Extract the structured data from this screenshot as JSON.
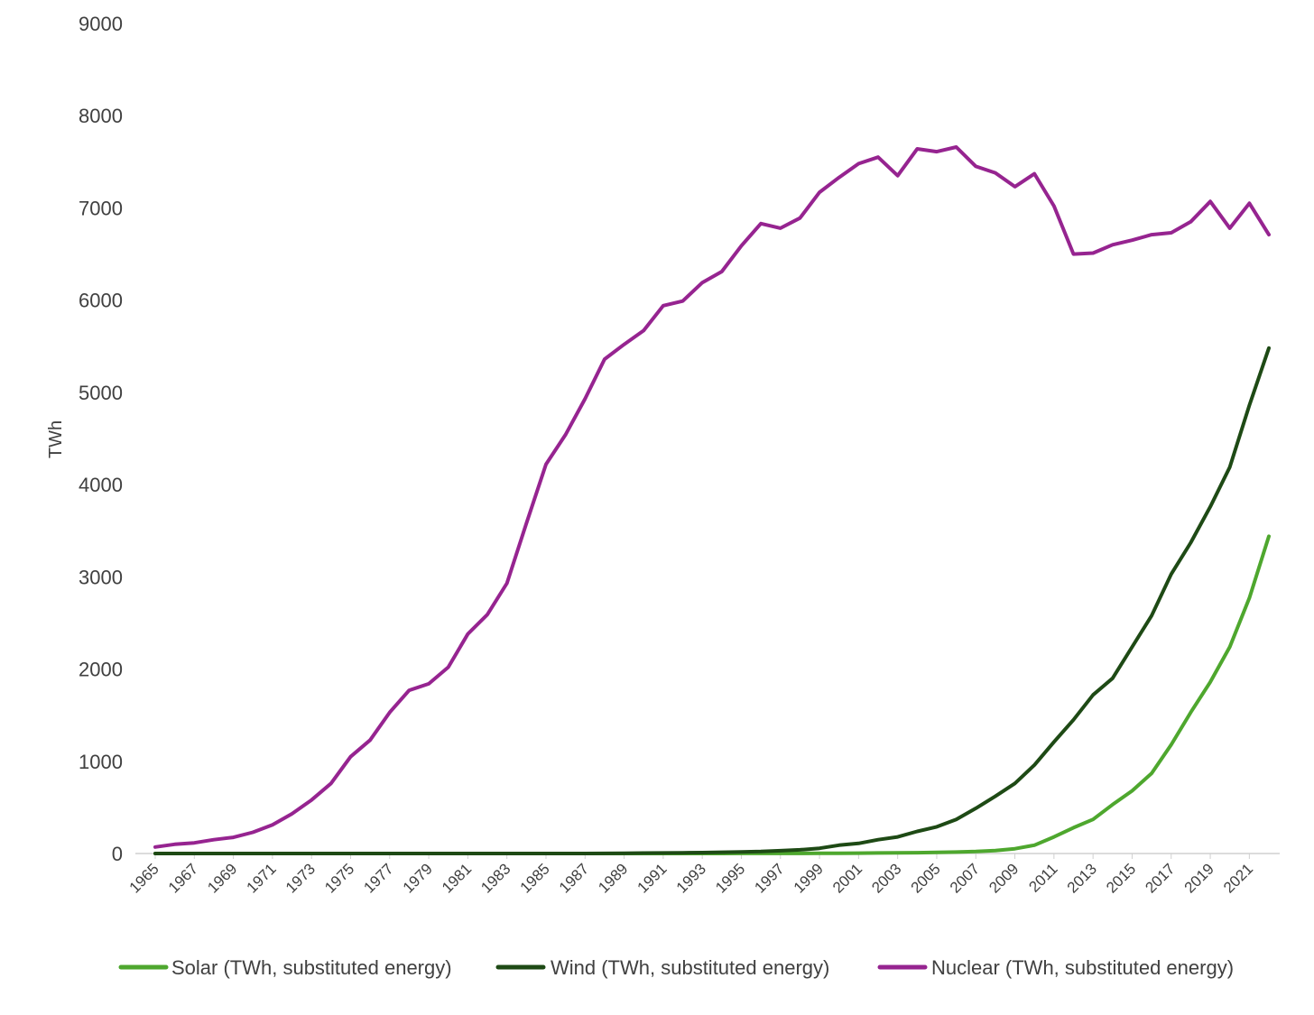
{
  "chart_data": {
    "type": "line",
    "title": "",
    "xlabel": "",
    "ylabel": "TWh",
    "ylim": [
      0,
      9000
    ],
    "yticks": [
      0,
      1000,
      2000,
      3000,
      4000,
      5000,
      6000,
      7000,
      8000,
      9000
    ],
    "x": [
      1965,
      1966,
      1967,
      1968,
      1969,
      1970,
      1971,
      1972,
      1973,
      1974,
      1975,
      1976,
      1977,
      1978,
      1979,
      1980,
      1981,
      1982,
      1983,
      1984,
      1985,
      1986,
      1987,
      1988,
      1989,
      1990,
      1991,
      1992,
      1993,
      1994,
      1995,
      1996,
      1997,
      1998,
      1999,
      2000,
      2001,
      2002,
      2003,
      2004,
      2005,
      2006,
      2007,
      2008,
      2009,
      2010,
      2011,
      2012,
      2013,
      2014,
      2015,
      2016,
      2017,
      2018,
      2019,
      2020,
      2021,
      2022
    ],
    "xtick_labels": [
      "1965",
      "1967",
      "1969",
      "1971",
      "1973",
      "1975",
      "1977",
      "1979",
      "1981",
      "1983",
      "1985",
      "1987",
      "1989",
      "1991",
      "1993",
      "1995",
      "1997",
      "1999",
      "2001",
      "2003",
      "2005",
      "2007",
      "2009",
      "2011",
      "2013",
      "2015",
      "2017",
      "2019",
      "2021"
    ],
    "grid": false,
    "legend_position": "bottom",
    "series": [
      {
        "name": "Solar (TWh, substituted energy)",
        "color": "#4ea72e",
        "values": [
          0,
          0,
          0,
          0,
          0,
          0,
          0,
          0,
          0,
          0,
          0,
          0,
          0,
          0,
          0,
          0,
          0,
          0,
          0,
          0,
          0,
          0,
          0,
          0,
          0,
          0,
          0,
          0,
          0,
          0,
          1,
          1,
          1,
          1,
          2,
          3,
          4,
          6,
          7,
          9,
          12,
          16,
          22,
          32,
          52,
          90,
          180,
          280,
          370,
          530,
          680,
          870,
          1180,
          1530,
          1860,
          2240,
          2770,
          3440
        ]
      },
      {
        "name": "Wind (TWh, substituted energy)",
        "color": "#1e4a15",
        "values": [
          0,
          0,
          0,
          0,
          0,
          0,
          0,
          0,
          0,
          0,
          0,
          0,
          0,
          0,
          0,
          0,
          0,
          0,
          0,
          0,
          0,
          0,
          0,
          1,
          3,
          5,
          6,
          8,
          10,
          14,
          18,
          22,
          30,
          40,
          57,
          90,
          110,
          150,
          180,
          240,
          290,
          370,
          490,
          620,
          760,
          960,
          1210,
          1450,
          1720,
          1900,
          2240,
          2580,
          3030,
          3370,
          3760,
          4190,
          4860,
          5480
        ]
      },
      {
        "name": "Nuclear (TWh, substituted energy)",
        "color": "#962490",
        "values": [
          70,
          100,
          115,
          150,
          175,
          230,
          310,
          430,
          580,
          760,
          1050,
          1230,
          1530,
          1770,
          1840,
          2020,
          2380,
          2590,
          2930,
          3580,
          4220,
          4540,
          4930,
          5360,
          5520,
          5670,
          5940,
          5990,
          6190,
          6310,
          6590,
          6830,
          6780,
          6890,
          7170,
          7330,
          7480,
          7550,
          7350,
          7640,
          7610,
          7660,
          7450,
          7380,
          7230,
          7370,
          7020,
          6500,
          6510,
          6600,
          6650,
          6710,
          6730,
          6850,
          7070,
          6780,
          7050,
          6710
        ]
      }
    ]
  }
}
